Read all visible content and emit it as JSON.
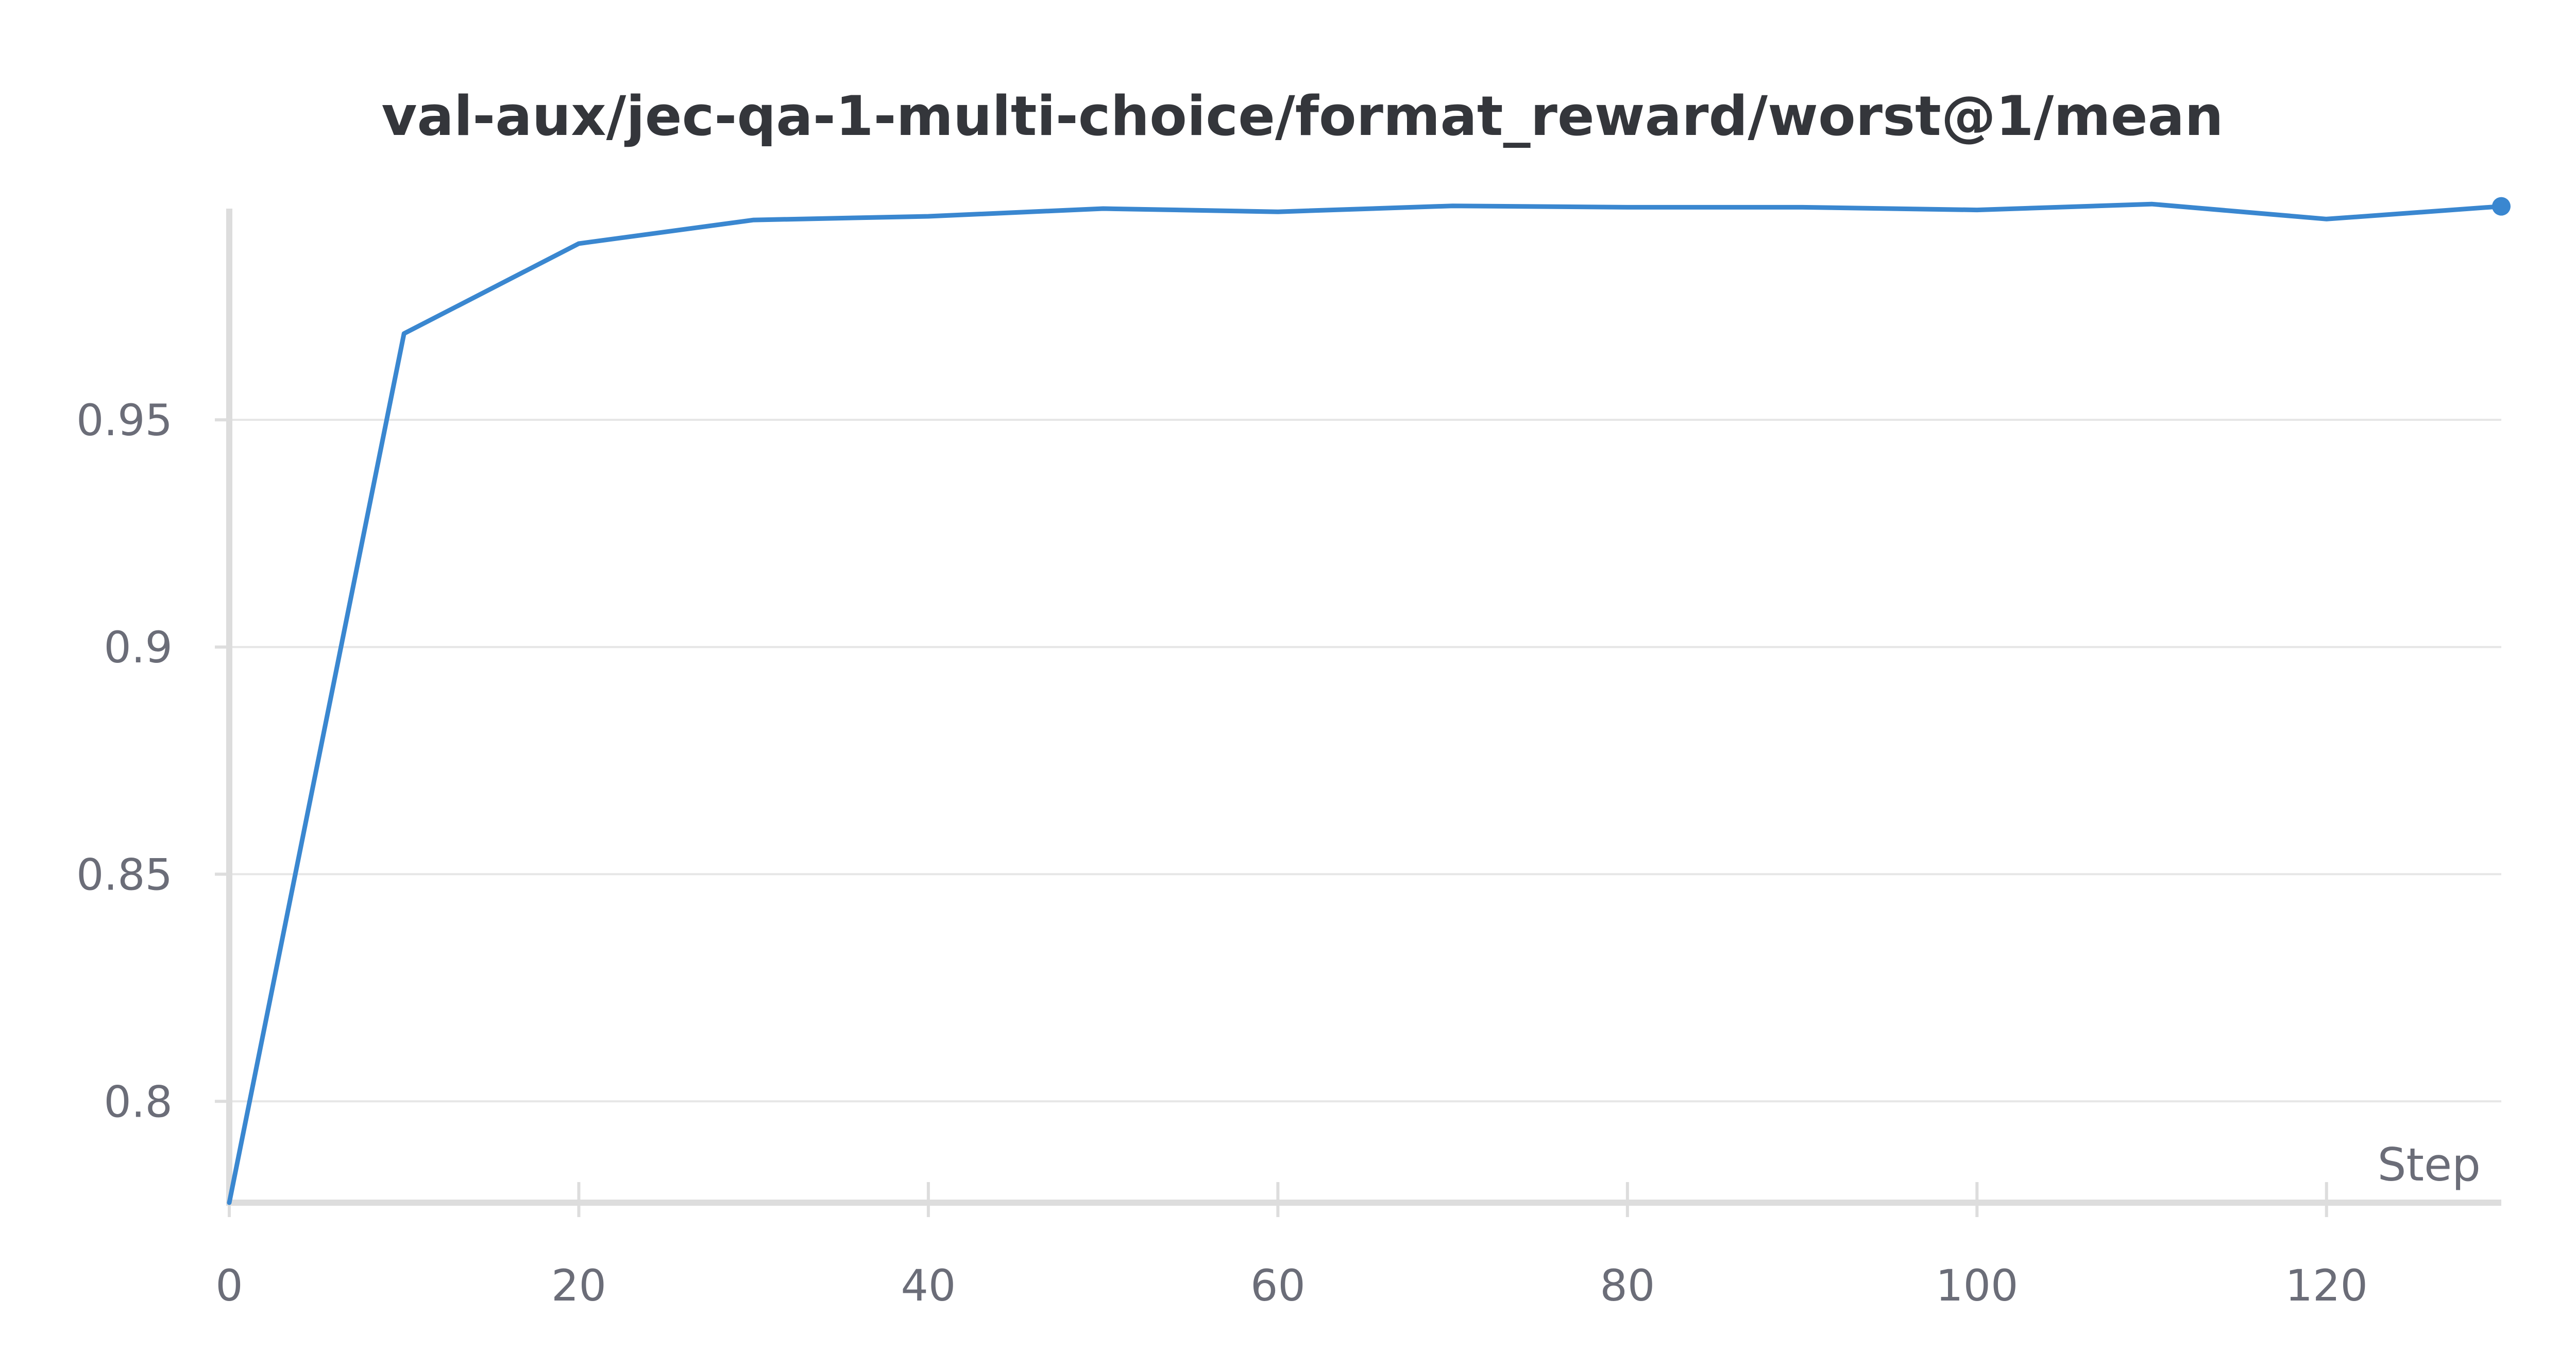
{
  "chart_data": {
    "type": "line",
    "title": "val-aux/jec-qa-1-multi-choice/format_reward/worst@1/mean",
    "xlabel": "Step",
    "ylabel": "",
    "xlim": [
      0,
      130
    ],
    "ylim": [
      0.7777,
      0.9965
    ],
    "x_ticks": [
      0,
      20,
      40,
      60,
      80,
      100,
      120
    ],
    "x_tick_labels": [
      "0",
      "20",
      "40",
      "60",
      "80",
      "100",
      "120"
    ],
    "y_ticks": [
      0.8,
      0.85,
      0.9,
      0.95
    ],
    "y_tick_labels": [
      "0.8",
      "0.85",
      "0.9",
      "0.95"
    ],
    "grid": true,
    "series": [
      {
        "color": "#3a87d0",
        "x": [
          0,
          10,
          20,
          30,
          40,
          50,
          60,
          70,
          80,
          90,
          100,
          110,
          120,
          130
        ],
        "y": [
          0.7777,
          0.969,
          0.9888,
          0.994,
          0.9948,
          0.9965,
          0.9958,
          0.9971,
          0.9968,
          0.9968,
          0.9962,
          0.9975,
          0.9942,
          0.997
        ]
      }
    ]
  }
}
